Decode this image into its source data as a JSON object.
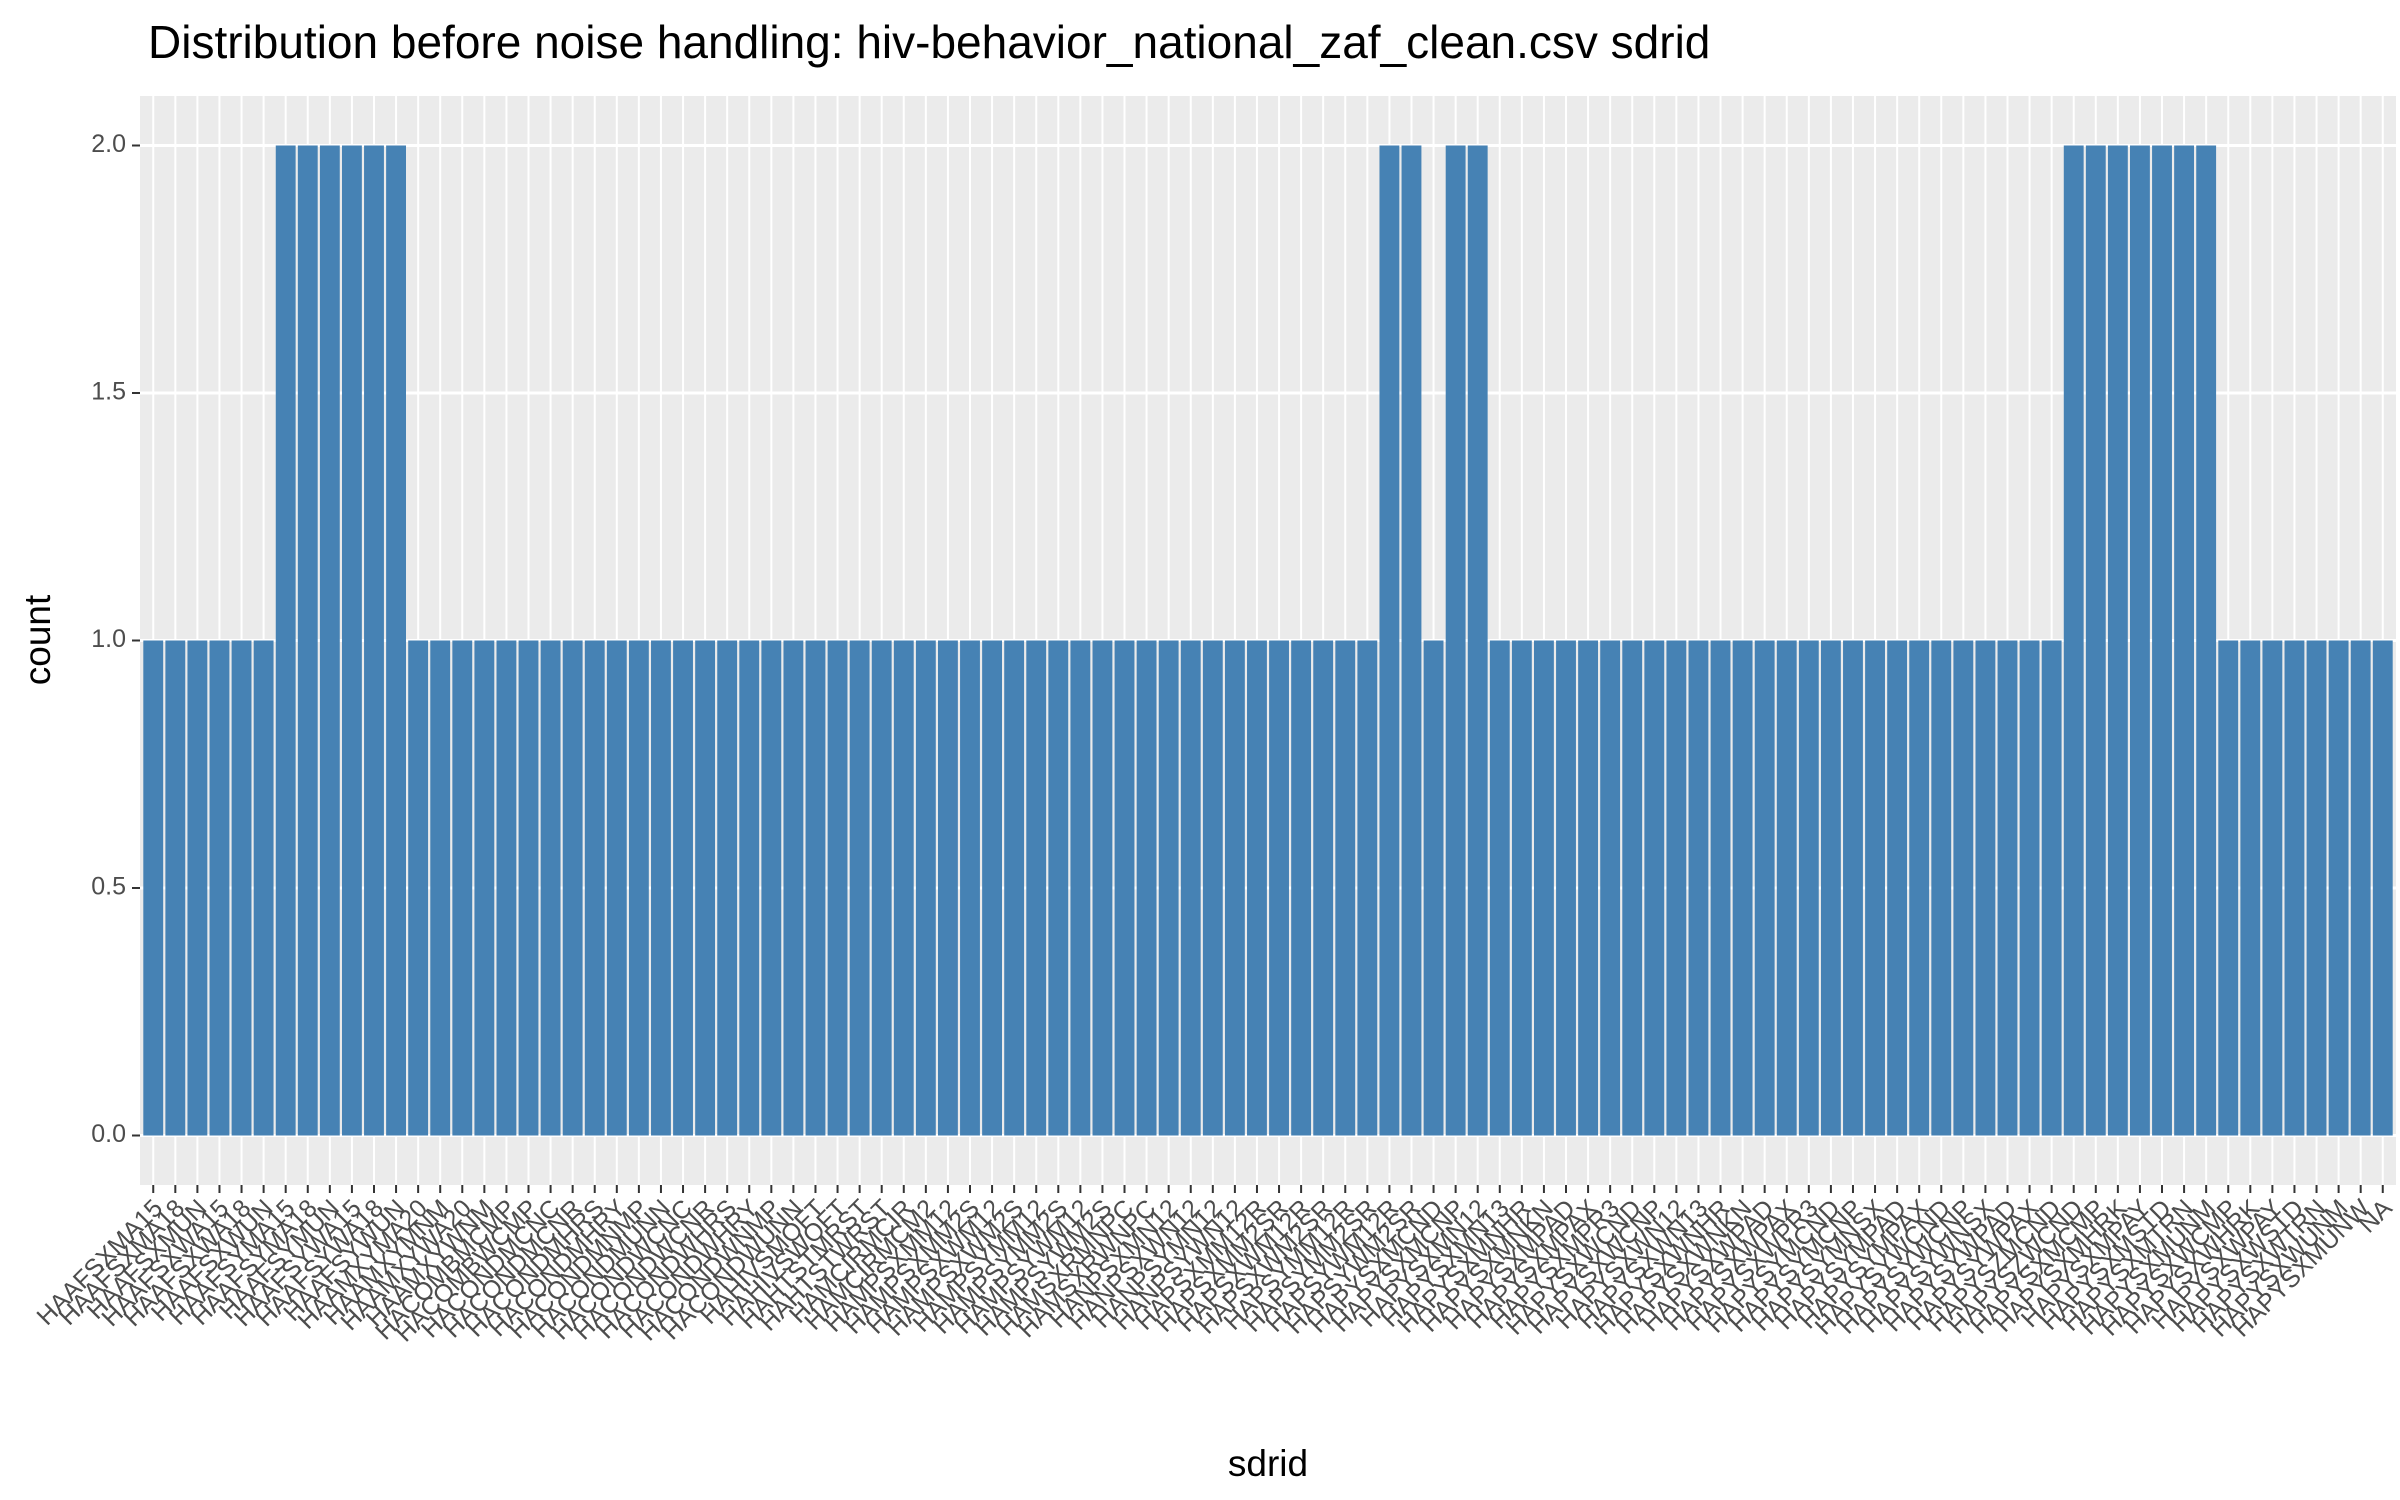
{
  "chart_data": {
    "type": "bar",
    "title": "Distribution before noise handling: hiv-behavior_national_zaf_clean.csv sdrid",
    "x_label": "sdrid",
    "y_label": "count",
    "color": "#4682b4",
    "grid": true,
    "categories": [
      "HAAFSXMA15",
      "HAAFSXMA18",
      "HAAFSXMUN",
      "HAAFSXWA15",
      "HAAFSXWA18",
      "HAAFSXWUN",
      "HAAFSYMA15",
      "HAAFSYMA18",
      "HAAFSYMUN",
      "HAAFSYWA15",
      "HAAFSYWA18",
      "HAAFSYWUN",
      "HAAMXYMA20",
      "HAAMXYMNM",
      "HAAMXYWA20",
      "HAAMXYWNM",
      "HACOMBMCMP",
      "HACOMBWCMP",
      "HACONDMCNC",
      "HACONDMCNR",
      "HACONDMHRS",
      "HACONDMHRY",
      "HACONDMNMP",
      "HACONDMUNN",
      "HACONDWCNC",
      "HACONDWCNR",
      "HACONDWHRS",
      "HACONDWHRY",
      "HACONDWNMP",
      "HACONDWUNN",
      "HAHIVSMOFT",
      "HAHIVSWOFT",
      "HAHTSTMRST",
      "HAHTSTWRST",
      "HAMCIRMCIR",
      "HAMCIRMCM2",
      "HAMPSXMM12",
      "HAMPSXMM2S",
      "HAMPSXWM12",
      "HAMPSXWM2S",
      "HAMPSYMM12",
      "HAMPSYMM2S",
      "HAMPSYWM12",
      "HAMPSYWM2S",
      "HAMSXRMNPC",
      "HAMSXRWNPC",
      "HANPSXMN12",
      "HANPSXWN12",
      "HANPSYMN12",
      "HANPSYWN12",
      "HAPSXMM12R",
      "HAPSXMM2SR",
      "HAPSXWM12R",
      "HAPSXWM2SR",
      "HAPSYMM12R",
      "HAPSYMM2SR",
      "HAPSYWM12R",
      "HAPSYWM2SR",
      "HAPYSXMCND",
      "HAPYSXMCNP",
      "HAPYSXMN12",
      "HAPYSXMN13",
      "HAPYSXMNHR",
      "HAPYSXMNKN",
      "HAPYSXMPAD",
      "HAPYSXMPAX",
      "HAPYSXMPR3",
      "HAPYSXWCND",
      "HAPYSXWCNP",
      "HAPYSXWN12",
      "HAPYSXWN13",
      "HAPYSXWNHR",
      "HAPYSXWNKN",
      "HAPYSXWPAD",
      "HAPYSXWPAX",
      "HAPYSXWPR3",
      "HAPYSYMCND",
      "HAPYSYMCNP",
      "HAPYSYMNSX",
      "HAPYSYMPAD",
      "HAPYSYMPAX",
      "HAPYSYWCND",
      "HAPYSYWCNP",
      "HAPYSYWNSX",
      "HAPYSYWPAD",
      "HAPYSYWPAX",
      "HAPYSZMCND",
      "HAPYSZWCND",
      "HAPYSXMCMP",
      "HAPYSXMHRK",
      "HAPYSXMPAY",
      "HAPYSXMSTD",
      "HAPYSXMTRN",
      "HAPYSXMUNM",
      "HAPYSXWCMP",
      "HAPYSXWHRK",
      "HAPYSXWPAY",
      "HAPYSXWSTD",
      "HAPYSXWTRN",
      "HAPYSXWUNM",
      "HAPYSXMUNW",
      "NA"
    ],
    "values": [
      1,
      1,
      1,
      1,
      1,
      1,
      2,
      2,
      2,
      2,
      2,
      2,
      1,
      1,
      1,
      1,
      1,
      1,
      1,
      1,
      1,
      1,
      1,
      1,
      1,
      1,
      1,
      1,
      1,
      1,
      1,
      1,
      1,
      1,
      1,
      1,
      1,
      1,
      1,
      1,
      1,
      1,
      1,
      1,
      1,
      1,
      1,
      1,
      1,
      1,
      1,
      1,
      1,
      1,
      1,
      1,
      2,
      2,
      1,
      2,
      2,
      1,
      1,
      1,
      1,
      1,
      1,
      1,
      1,
      1,
      1,
      1,
      1,
      1,
      1,
      1,
      1,
      1,
      1,
      1,
      1,
      1,
      1,
      1,
      1,
      1,
      1,
      2,
      2,
      2,
      2,
      2,
      2,
      2,
      1,
      1,
      1,
      1,
      1,
      1,
      1,
      1
    ],
    "ylim": [
      -0.1,
      2.1
    ],
    "yticks": [
      {
        "value": 0,
        "label": "0.0"
      },
      {
        "value": 0.5,
        "label": "0.5"
      },
      {
        "value": 1,
        "label": "1.0"
      },
      {
        "value": 1.5,
        "label": "1.5"
      },
      {
        "value": 2,
        "label": "2.0"
      }
    ]
  }
}
